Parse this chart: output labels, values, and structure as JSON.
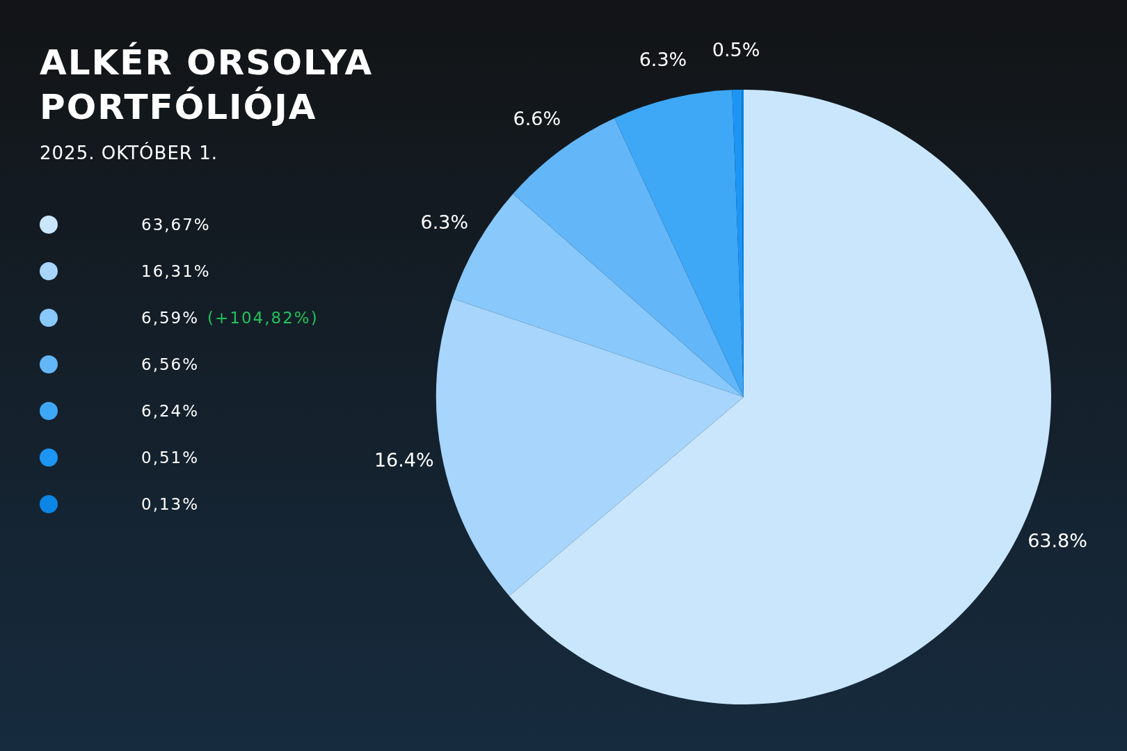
{
  "chart_data": {
    "type": "pie",
    "title": "ALKÉR ORSOLYA PORTFÓLIÓJA",
    "subtitle": "2025. OKTÓBER 1.",
    "categories": [
      null,
      null,
      null,
      null,
      null,
      null,
      null
    ],
    "values": [
      63.8,
      16.4,
      6.3,
      6.6,
      6.3,
      0.5,
      0.1
    ],
    "value_labels": [
      "63.8%",
      "16.4%",
      "6.3%",
      "6.6%",
      "6.3%",
      "0.5%",
      null
    ],
    "colors": [
      "#cae6fd",
      "#a7d5fb",
      "#88c8fa",
      "#63b6f8",
      "#3ea8f7",
      "#1d95f4",
      "#0b86e6"
    ],
    "annotations": [
      "63,67%",
      "16,31%",
      "6,59%",
      "6,56%",
      "6,24%",
      "0,51%",
      "0,13%",
      "(+104,82%)"
    ]
  }
}
